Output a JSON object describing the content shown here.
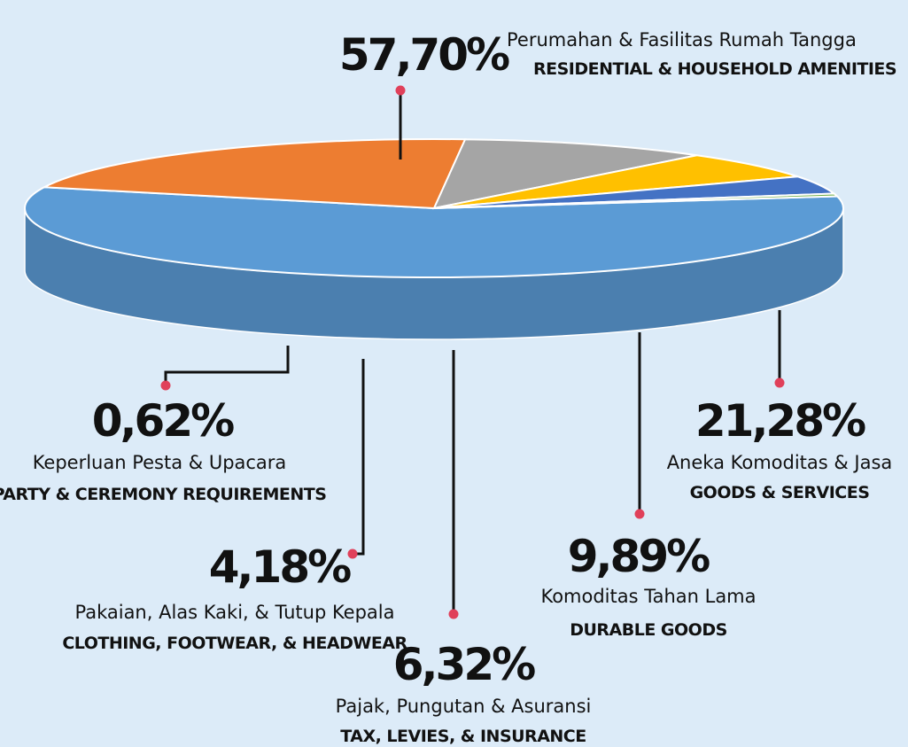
{
  "chart_data": {
    "type": "pie",
    "categories": [
      "Perumahan & Fasilitas Rumah Tangga",
      "Aneka Komoditas & Jasa",
      "Komoditas Tahan Lama",
      "Pajak, Pungutan & Asuransi",
      "Pakaian, Alas Kaki, & Tutup Kepala",
      "Keperluan Pesta & Upacara"
    ],
    "categories_en": [
      "RESIDENTIAL & HOUSEHOLD AMENITIES",
      "GOODS & SERVICES",
      "DURABLE GOODS",
      "TAX, LEVIES, & INSURANCE",
      "CLOTHING, FOOTWEAR, & HEADWEAR",
      "PARTY & CEREMONY REQUIREMENTS"
    ],
    "values": [
      57.7,
      21.28,
      9.89,
      6.32,
      4.18,
      0.62
    ],
    "value_labels": [
      "57,70%",
      "21,28%",
      "9,89%",
      "6,32%",
      "4,18%",
      "0,62%"
    ],
    "colors": [
      "#5b9bd5",
      "#ed7d31",
      "#a5a5a5",
      "#ffc000",
      "#4472c4",
      "#70ad47"
    ]
  }
}
